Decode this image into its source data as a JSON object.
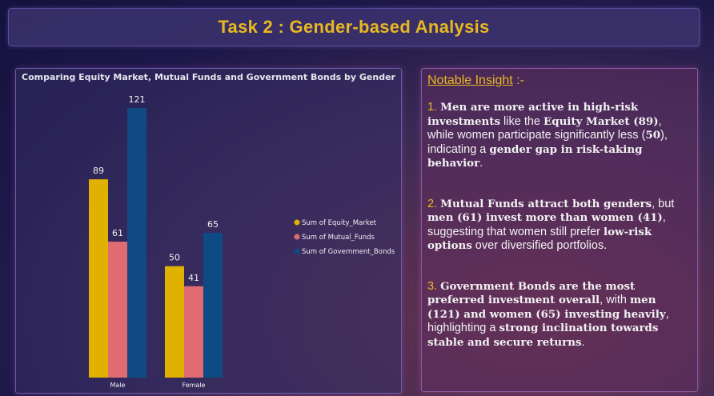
{
  "header": {
    "title": "Task 2 : Gender-based Analysis"
  },
  "colors": {
    "equity": "#e0b100",
    "mutual": "#e06b70",
    "bonds": "#0f4a85",
    "accent": "#e8b820"
  },
  "chart_data": {
    "type": "bar",
    "title": "Comparing Equity Market, Mutual Funds and Government Bonds by Gender",
    "categories": [
      "Male",
      "Female"
    ],
    "series": [
      {
        "name": "Sum of Equity_Market",
        "values": [
          89,
          50
        ]
      },
      {
        "name": "Sum of Mutual_Funds",
        "values": [
          61,
          41
        ]
      },
      {
        "name": "Sum of Government_Bonds",
        "values": [
          121,
          65
        ]
      }
    ],
    "ylim": [
      0,
      121
    ],
    "grid": false,
    "legend": "right"
  },
  "insight": {
    "heading": "Notable Insight",
    "heading_suffix": " :-",
    "p1": {
      "num": "1.",
      "a": "Men are more active in high-risk investments",
      "b": " like the ",
      "c": "Equity Market (89)",
      "d": ", while women participate significantly less (",
      "e": "50",
      "f": "), indicating a ",
      "g": "gender gap in risk-taking behavior",
      "h": "."
    },
    "p2": {
      "num": "2.",
      "a": "Mutual Funds attract both genders",
      "b": ", but ",
      "c": "men (61) invest more than women (41)",
      "d": ", suggesting that women still prefer ",
      "e": "low-risk options",
      "f": " over diversified portfolios."
    },
    "p3": {
      "num": "3.",
      "a": "Government Bonds are the most preferred investment overall",
      "b": ", with ",
      "c": "men (121) and women (65) investing heavily",
      "d": ", highlighting a ",
      "e": "strong inclination towards stable and secure returns",
      "f": "."
    }
  }
}
